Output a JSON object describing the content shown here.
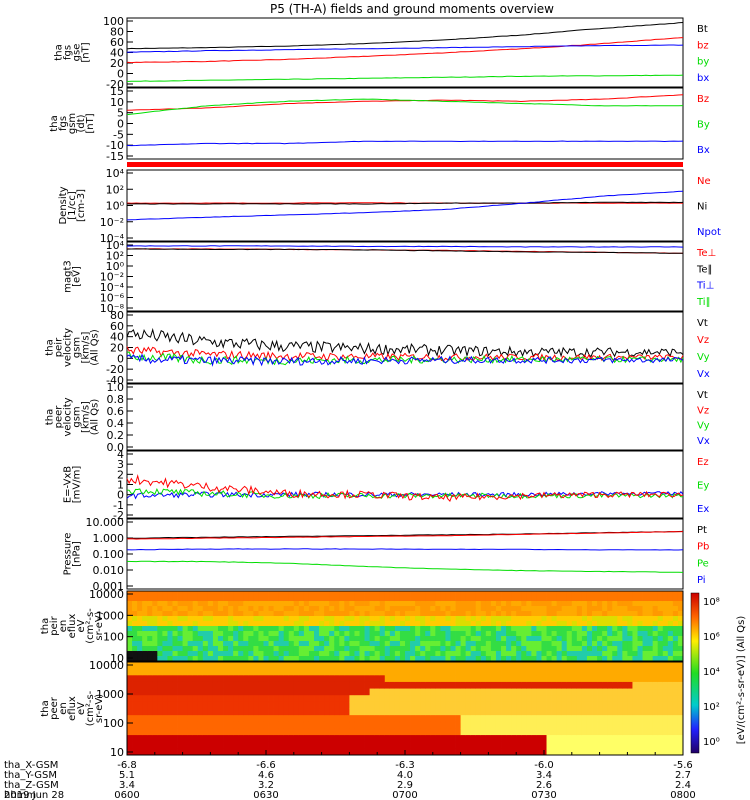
{
  "title": "P5 (TH-A) fields and ground moments overview",
  "colors": {
    "black": "#000000",
    "red": "#ff0000",
    "green": "#00dd00",
    "blue": "#0000ff"
  },
  "chart_data": [
    {
      "id": "fgs_gse",
      "type": "line",
      "ylabel": [
        "tha",
        "fgs",
        "gse",
        "[nT]"
      ],
      "yticks": [
        "100",
        "80",
        "60",
        "40",
        "20",
        "0",
        "-20"
      ],
      "ylim": [
        -30,
        105
      ],
      "legend": [
        {
          "label": "Bt",
          "color": "black"
        },
        {
          "label": "bz",
          "color": "red"
        },
        {
          "label": "by",
          "color": "green"
        },
        {
          "label": "bx",
          "color": "blue"
        }
      ],
      "series": [
        {
          "name": "Bt",
          "color": "black",
          "y": [
            45,
            47,
            50,
            55,
            62,
            72,
            85,
            96
          ]
        },
        {
          "name": "bz",
          "color": "red",
          "y": [
            18,
            20,
            24,
            30,
            37,
            45,
            55,
            67
          ]
        },
        {
          "name": "by",
          "color": "green",
          "y": [
            -19,
            -17,
            -15,
            -13,
            -11,
            -9,
            -8,
            -7
          ]
        },
        {
          "name": "bx",
          "color": "blue",
          "y": [
            38,
            41,
            43,
            45,
            47,
            49,
            51,
            52
          ]
        }
      ]
    },
    {
      "id": "fgs_gsm",
      "type": "line",
      "ylabel": [
        "tha",
        "fgs",
        "gsm",
        "(dt)",
        "[nT]"
      ],
      "yticks": [
        "15",
        "10",
        "5",
        "0",
        "-5",
        "-10",
        "-15"
      ],
      "ylim": [
        -17,
        15
      ],
      "legend": [
        {
          "label": "Bz",
          "color": "red"
        },
        {
          "label": "By",
          "color": "green"
        },
        {
          "label": "Bx",
          "color": "blue"
        }
      ],
      "series": [
        {
          "name": "Bz",
          "color": "red",
          "y": [
            5,
            6,
            8,
            9,
            9.5,
            9,
            10,
            12
          ]
        },
        {
          "name": "By",
          "color": "green",
          "y": [
            3,
            7,
            9,
            10,
            9,
            8,
            7,
            7
          ]
        },
        {
          "name": "Bx",
          "color": "blue",
          "y": [
            -11,
            -10,
            -10,
            -9,
            -9,
            -9,
            -9,
            -9
          ]
        }
      ]
    },
    {
      "id": "density",
      "type": "line",
      "log": true,
      "ylabel": [
        "Density",
        "[1/cc]",
        "[cm-3]"
      ],
      "yticks": [
        "10⁴",
        "10²",
        "10⁰",
        "10⁻²",
        "10⁻⁴"
      ],
      "ylim": [
        -4.5,
        4.5
      ],
      "legend": [
        {
          "label": "Ne",
          "color": "red"
        },
        {
          "label": "Ni",
          "color": "black"
        },
        {
          "label": "Npot",
          "color": "blue"
        }
      ],
      "series": [
        {
          "name": "Ne",
          "color": "red",
          "y": [
            0.3,
            0.3,
            0.3,
            0.35,
            0.3,
            0.3,
            0.3,
            0.3
          ]
        },
        {
          "name": "Ni",
          "color": "black",
          "y": [
            0.2,
            0.2,
            0.2,
            0.2,
            0.3,
            0.3,
            0.4,
            0.4
          ]
        },
        {
          "name": "Npot",
          "color": "blue",
          "y": [
            -1.8,
            -1.5,
            -1.2,
            -0.9,
            -0.5,
            0.3,
            1.2,
            1.8
          ]
        }
      ]
    },
    {
      "id": "temperature",
      "type": "line",
      "log": true,
      "ylabel": [
        "magt3",
        "[eV]"
      ],
      "yticks": [
        "10⁴",
        "10²",
        "10⁰",
        "10⁻²",
        "10⁻⁴",
        "10⁻⁶",
        "10⁻⁸"
      ],
      "ylim": [
        -9,
        5
      ],
      "legend": [
        {
          "label": "Te⊥",
          "color": "red"
        },
        {
          "label": "Te∥",
          "color": "black"
        },
        {
          "label": "Ti⊥",
          "color": "blue"
        },
        {
          "label": "Ti∥",
          "color": "green"
        }
      ],
      "series": [
        {
          "name": "Te⊥",
          "color": "red",
          "y": [
            3.6,
            3.6,
            3.5,
            3.4,
            3.3,
            3.1,
            2.9,
            2.7
          ]
        },
        {
          "name": "Te∥",
          "color": "black",
          "y": [
            3.6,
            3.5,
            3.5,
            3.4,
            3.2,
            3.0,
            2.9,
            2.7
          ]
        },
        {
          "name": "Ti⊥",
          "color": "blue",
          "y": [
            4.2,
            4.2,
            4.2,
            4.1,
            4.1,
            4.0,
            4.0,
            4.0
          ]
        }
      ]
    },
    {
      "id": "peir_velocity",
      "type": "line",
      "noisy": true,
      "ylabel": [
        "tha",
        "peir",
        "velocity",
        "gsm",
        "[km/s]",
        "(All Qs)"
      ],
      "yticks": [
        "80",
        "60",
        "40",
        "20",
        "0",
        "-20",
        "-40"
      ],
      "ylim": [
        -42,
        82
      ],
      "legend": [
        {
          "label": "Vt",
          "color": "black"
        },
        {
          "label": "Vz",
          "color": "red"
        },
        {
          "label": "Vy",
          "color": "green"
        },
        {
          "label": "Vx",
          "color": "blue"
        }
      ],
      "series": [
        {
          "name": "Vt",
          "color": "black",
          "y": [
            45,
            30,
            22,
            18,
            15,
            12,
            12,
            12
          ],
          "amp": 12
        },
        {
          "name": "Vz",
          "color": "red",
          "y": [
            15,
            8,
            5,
            4,
            3,
            3,
            3,
            3
          ],
          "amp": 8
        },
        {
          "name": "Vy",
          "color": "green",
          "y": [
            5,
            -2,
            -3,
            -2,
            -1,
            -1,
            -1,
            -1
          ],
          "amp": 8
        },
        {
          "name": "Vx",
          "color": "blue",
          "y": [
            0,
            -3,
            -4,
            -3,
            -2,
            -2,
            -2,
            -2
          ],
          "amp": 8
        }
      ]
    },
    {
      "id": "peer_velocity",
      "type": "line",
      "ylabel": [
        "tha",
        "peer",
        "velocity",
        "gsm",
        "[km/s]",
        "(All Qs)"
      ],
      "yticks": [
        "1.0",
        "0.8",
        "0.6",
        "0.4",
        "0.2",
        "0.0"
      ],
      "ylim": [
        0,
        1
      ],
      "legend": [
        {
          "label": "Vt",
          "color": "black"
        },
        {
          "label": "Vz",
          "color": "red"
        },
        {
          "label": "Vy",
          "color": "green"
        },
        {
          "label": "Vx",
          "color": "blue"
        }
      ],
      "series": []
    },
    {
      "id": "e_vxb",
      "type": "line",
      "noisy": true,
      "ylabel": [
        "E=-VxB",
        "[mV/m]"
      ],
      "yticks": [
        "4",
        "3",
        "2",
        "1",
        "0",
        "-1",
        "-2"
      ],
      "ylim": [
        -2,
        4
      ],
      "legend": [
        {
          "label": "Ez",
          "color": "red"
        },
        {
          "label": "Ey",
          "color": "green"
        },
        {
          "label": "Ex",
          "color": "blue"
        }
      ],
      "series": [
        {
          "name": "Ex",
          "color": "blue",
          "y": [
            0,
            0.1,
            0.1,
            0.1,
            0.1,
            0.1,
            0.2,
            0.2
          ],
          "amp": 0.25
        },
        {
          "name": "Ey",
          "color": "green",
          "y": [
            0.5,
            0.2,
            0,
            0,
            0,
            0,
            0,
            0
          ],
          "amp": 0.3
        },
        {
          "name": "Ez",
          "color": "red",
          "y": [
            1.5,
            0.8,
            0.2,
            0.1,
            -0.2,
            0,
            0.1,
            0.1
          ],
          "amp": 0.4
        }
      ]
    },
    {
      "id": "pressure",
      "type": "line",
      "log": true,
      "ylabel": [
        "Pressure",
        "[nPa]"
      ],
      "yticks": [
        "10.000",
        "1.000",
        "0.100",
        "0.010",
        "0.001"
      ],
      "ylim": [
        -3.1,
        1.1
      ],
      "legend": [
        {
          "label": "Pt",
          "color": "black"
        },
        {
          "label": "Pb",
          "color": "red"
        },
        {
          "label": "Pe",
          "color": "green"
        },
        {
          "label": "Pi",
          "color": "blue"
        }
      ],
      "series": [
        {
          "name": "Pt",
          "color": "black",
          "y": [
            -0.05,
            0.0,
            0.05,
            0.1,
            0.15,
            0.2,
            0.28,
            0.35
          ]
        },
        {
          "name": "Pb",
          "color": "red",
          "y": [
            -0.1,
            -0.05,
            0.0,
            0.05,
            0.1,
            0.18,
            0.26,
            0.34
          ]
        },
        {
          "name": "Pe",
          "color": "green",
          "y": [
            -1.45,
            -1.45,
            -1.55,
            -1.75,
            -1.9,
            -2.0,
            -2.05,
            -2.1
          ]
        },
        {
          "name": "Pi",
          "color": "blue",
          "y": [
            -0.75,
            -0.7,
            -0.7,
            -0.7,
            -0.72,
            -0.72,
            -0.75,
            -0.75
          ]
        }
      ]
    },
    {
      "id": "peir_spectrogram",
      "type": "heatmap",
      "ylabel": [
        "tha",
        "peir",
        "en",
        "eflux",
        "eV",
        "(cm²-s-",
        "sr-eV)"
      ],
      "yticks": [
        "10000",
        "1000",
        "100",
        "10"
      ]
    },
    {
      "id": "peer_spectrogram",
      "type": "heatmap",
      "ylabel": [
        "tha",
        "peer",
        "en",
        "eflux",
        "eV",
        "(cm²-s-",
        "sr-eV)"
      ],
      "yticks": [
        "10000",
        "1000",
        "100",
        "10"
      ]
    }
  ],
  "colorbar": {
    "ticks": [
      "10⁸",
      "10⁶",
      "10⁴",
      "10²",
      "10⁰"
    ],
    "label": "[eV/(cm²-s-sr-eV)] (All Qs)"
  },
  "xaxis": {
    "ticks": [
      "0600",
      "0630",
      "0700",
      "0730",
      "0800"
    ],
    "rows": [
      {
        "label": "tha_X-GSM",
        "values": [
          "-6.8",
          "-6.6",
          "-6.3",
          "-6.0",
          "-5.6"
        ]
      },
      {
        "label": "tha_Y-GSM",
        "values": [
          "5.1",
          "4.6",
          "4.0",
          "3.4",
          "2.7"
        ]
      },
      {
        "label": "tha_Z-GSM",
        "values": [
          "3.4",
          "3.2",
          "2.9",
          "2.6",
          "2.4"
        ]
      },
      {
        "label": "hhmm",
        "values": [
          "0600",
          "0630",
          "0700",
          "0730",
          "0800"
        ]
      }
    ],
    "date": "2019 Jun 28"
  }
}
